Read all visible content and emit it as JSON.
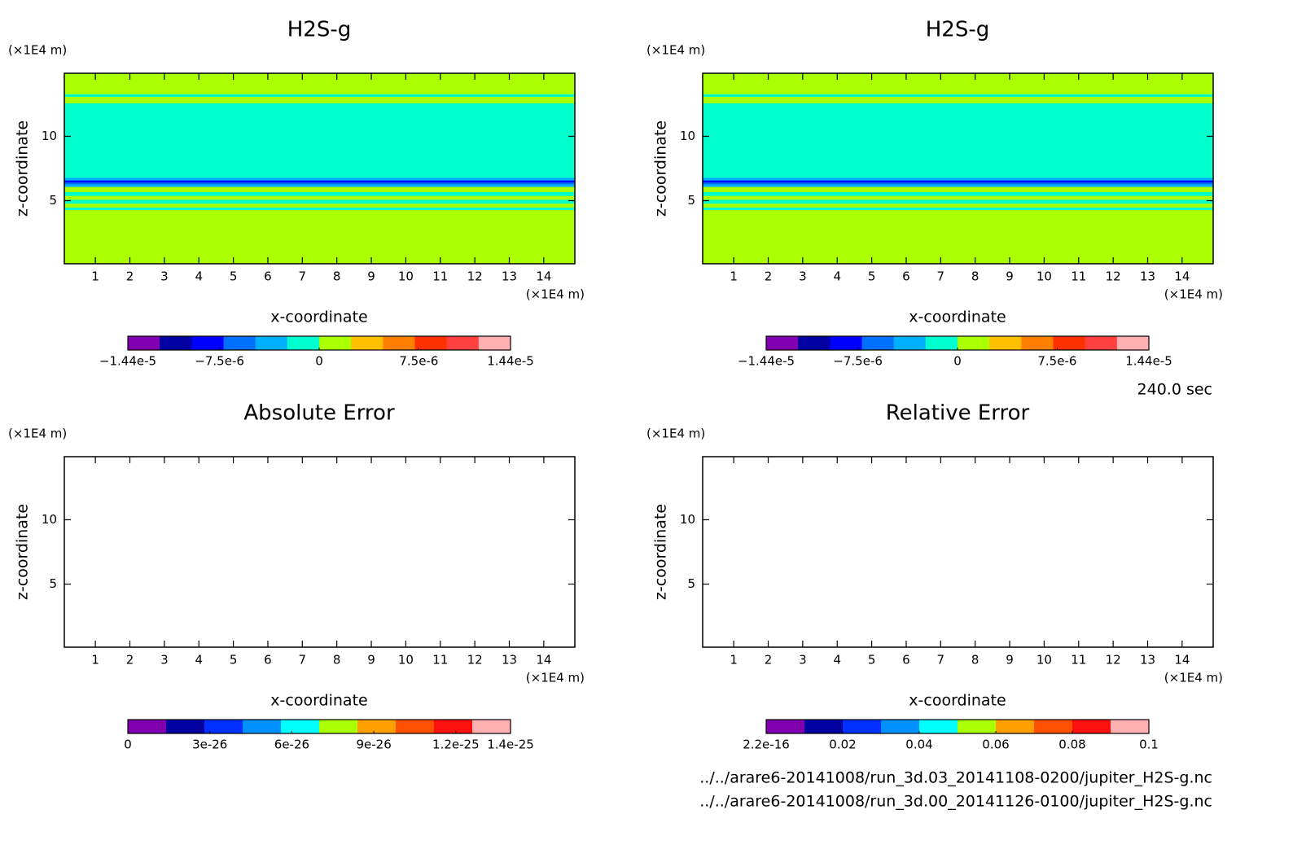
{
  "chart_data": [
    {
      "type": "heatmap",
      "title": "H2S-g",
      "xlabel": "x-coordinate",
      "ylabel": "z-coordinate",
      "xunit": "(×1E4 m)",
      "yunit": "(×1E4 m)",
      "xlim": [
        0.1,
        14.9
      ],
      "ylim": [
        0.1,
        14.9
      ],
      "xticks": [
        1,
        2,
        3,
        4,
        5,
        6,
        7,
        8,
        9,
        10,
        11,
        12,
        13,
        14
      ],
      "yticks": [
        5,
        10
      ],
      "layers": {
        "z": [
          0.1,
          4.3,
          4.5,
          4.8,
          5.1,
          5.4,
          5.7,
          6.1,
          6.3,
          6.45,
          6.6,
          6.8,
          12.6,
          13.1,
          13.3,
          14.9
        ],
        "values": [
          1.2e-06,
          -1.2e-06,
          1.2e-06,
          -1.2e-06,
          1.2e-06,
          -1.2e-06,
          1.2e-06,
          -3.6e-06,
          -6e-06,
          -8.4e-06,
          -3.6e-06,
          -1.2e-06,
          1.2e-06,
          -1.2e-06,
          1.2e-06
        ]
      },
      "colorbar": {
        "clim": [
          -1.44e-05,
          1.44e-05
        ],
        "colors": [
          "#8000b0",
          "#0000a0",
          "#0000ff",
          "#0070ff",
          "#00b0ff",
          "#00ffcc",
          "#aaff00",
          "#ffc000",
          "#ff8000",
          "#ff3000",
          "#ff4040",
          "#ffb0b0"
        ],
        "ticks": [
          {
            "value": -1.44e-05,
            "label": "−1.44e-5"
          },
          {
            "value": -7.5e-06,
            "label": "−7.5e-6"
          },
          0,
          {
            "value": 7.5e-06,
            "label": "7.5e-6"
          },
          {
            "value": 1.44e-05,
            "label": "1.44e-5"
          }
        ]
      }
    },
    {
      "type": "heatmap",
      "title": "H2S-g",
      "xlabel": "x-coordinate",
      "ylabel": "z-coordinate",
      "xunit": "(×1E4 m)",
      "yunit": "(×1E4 m)",
      "xlim": [
        0.1,
        14.9
      ],
      "ylim": [
        0.1,
        14.9
      ],
      "xticks": [
        1,
        2,
        3,
        4,
        5,
        6,
        7,
        8,
        9,
        10,
        11,
        12,
        13,
        14
      ],
      "yticks": [
        5,
        10
      ],
      "layers": {
        "z": [
          0.1,
          4.3,
          4.5,
          4.8,
          5.1,
          5.4,
          5.7,
          6.1,
          6.3,
          6.45,
          6.6,
          6.8,
          12.6,
          13.1,
          13.3,
          14.9
        ],
        "values": [
          1.2e-06,
          -1.2e-06,
          1.2e-06,
          -1.2e-06,
          1.2e-06,
          -1.2e-06,
          1.2e-06,
          -3.6e-06,
          -6e-06,
          -8.4e-06,
          -3.6e-06,
          -1.2e-06,
          1.2e-06,
          -1.2e-06,
          1.2e-06
        ]
      },
      "colorbar": {
        "clim": [
          -1.44e-05,
          1.44e-05
        ],
        "colors": [
          "#8000b0",
          "#0000a0",
          "#0000ff",
          "#0070ff",
          "#00b0ff",
          "#00ffcc",
          "#aaff00",
          "#ffc000",
          "#ff8000",
          "#ff3000",
          "#ff4040",
          "#ffb0b0"
        ],
        "ticks": [
          {
            "value": -1.44e-05,
            "label": "−1.44e-5"
          },
          {
            "value": -7.5e-06,
            "label": "−7.5e-6"
          },
          0,
          {
            "value": 7.5e-06,
            "label": "7.5e-6"
          },
          {
            "value": 1.44e-05,
            "label": "1.44e-5"
          }
        ]
      }
    },
    {
      "type": "heatmap",
      "title": "Absolute Error",
      "xlabel": "x-coordinate",
      "ylabel": "z-coordinate",
      "xunit": "(×1E4 m)",
      "yunit": "(×1E4 m)",
      "xlim": [
        0.1,
        14.9
      ],
      "ylim": [
        0.1,
        14.9
      ],
      "xticks": [
        1,
        2,
        3,
        4,
        5,
        6,
        7,
        8,
        9,
        10,
        11,
        12,
        13,
        14
      ],
      "yticks": [
        5,
        10
      ],
      "colorbar": {
        "clim": [
          0,
          1.4e-25
        ],
        "colors": [
          "#8000b0",
          "#0000a0",
          "#0030ff",
          "#0090ff",
          "#00ffff",
          "#aaff00",
          "#ffa000",
          "#ff5000",
          "#ff1010",
          "#ffb0b0"
        ],
        "ticks": [
          0,
          3e-26,
          6e-26,
          9e-26,
          1.2e-25,
          1.4e-25
        ]
      }
    },
    {
      "type": "heatmap",
      "title": "Relative Error",
      "xlabel": "x-coordinate",
      "ylabel": "z-coordinate",
      "xunit": "(×1E4 m)",
      "yunit": "(×1E4 m)",
      "xlim": [
        0.1,
        14.9
      ],
      "ylim": [
        0.1,
        14.9
      ],
      "xticks": [
        1,
        2,
        3,
        4,
        5,
        6,
        7,
        8,
        9,
        10,
        11,
        12,
        13,
        14
      ],
      "yticks": [
        5,
        10
      ],
      "colorbar": {
        "clim": [
          2.2e-16,
          0.1
        ],
        "colors": [
          "#8000b0",
          "#0000a0",
          "#0030ff",
          "#0090ff",
          "#00ffff",
          "#aaff00",
          "#ffa000",
          "#ff5000",
          "#ff1010",
          "#ffb0b0"
        ],
        "ticks": [
          {
            "value": 2.2e-16,
            "label": "2.2e-16"
          },
          0.02,
          0.04,
          0.06,
          0.08,
          0.1
        ]
      }
    }
  ],
  "time_label": "240.0 sec",
  "files": [
    "../../arare6-20141008/run_3d.03_20141108-0200/jupiter_H2S-g.nc",
    "../../arare6-20141008/run_3d.00_20141126-0100/jupiter_H2S-g.nc"
  ]
}
